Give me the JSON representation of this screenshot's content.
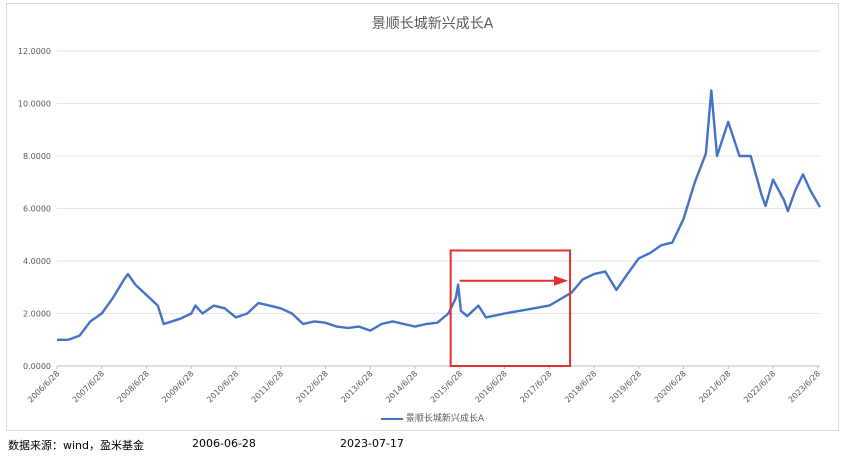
{
  "chart_data": {
    "type": "line",
    "title": "景顺长城新兴成长A",
    "ylim": [
      0,
      12
    ],
    "yticks": [
      "0.0000",
      "2.0000",
      "4.0000",
      "6.0000",
      "8.0000",
      "10.0000",
      "12.0000"
    ],
    "xticks": [
      "2006/6/28",
      "2007/6/28",
      "2008/6/28",
      "2009/6/28",
      "2010/6/28",
      "2011/6/28",
      "2012/6/28",
      "2013/6/28",
      "2014/6/28",
      "2015/6/28",
      "2016/6/28",
      "2017/6/28",
      "2018/6/28",
      "2019/6/28",
      "2020/6/28",
      "2021/6/28",
      "2022/6/28",
      "2023/6/28"
    ],
    "grid": true,
    "legend_position": "bottom",
    "series": [
      {
        "name": "景顺长城新兴成长A",
        "color": "#4472c4",
        "points": [
          [
            "2006-06-28",
            1.0
          ],
          [
            "2006-09-28",
            1.0
          ],
          [
            "2006-12-28",
            1.15
          ],
          [
            "2007-03-28",
            1.7
          ],
          [
            "2007-06-28",
            2.0
          ],
          [
            "2007-09-28",
            2.6
          ],
          [
            "2007-12-28",
            3.3
          ],
          [
            "2008-01-28",
            3.5
          ],
          [
            "2008-03-28",
            3.1
          ],
          [
            "2008-06-28",
            2.7
          ],
          [
            "2008-09-28",
            2.3
          ],
          [
            "2008-11-15",
            1.6
          ],
          [
            "2009-03-28",
            1.8
          ],
          [
            "2009-06-28",
            2.0
          ],
          [
            "2009-08-01",
            2.3
          ],
          [
            "2009-09-28",
            2.0
          ],
          [
            "2009-12-28",
            2.3
          ],
          [
            "2010-03-28",
            2.2
          ],
          [
            "2010-06-28",
            1.85
          ],
          [
            "2010-09-28",
            2.0
          ],
          [
            "2010-12-28",
            2.4
          ],
          [
            "2011-03-28",
            2.3
          ],
          [
            "2011-06-28",
            2.2
          ],
          [
            "2011-09-28",
            2.0
          ],
          [
            "2011-12-28",
            1.6
          ],
          [
            "2012-03-28",
            1.7
          ],
          [
            "2012-06-28",
            1.65
          ],
          [
            "2012-09-28",
            1.5
          ],
          [
            "2012-12-28",
            1.45
          ],
          [
            "2013-03-28",
            1.5
          ],
          [
            "2013-06-28",
            1.35
          ],
          [
            "2013-09-28",
            1.6
          ],
          [
            "2013-12-28",
            1.7
          ],
          [
            "2014-03-28",
            1.6
          ],
          [
            "2014-06-28",
            1.5
          ],
          [
            "2014-09-28",
            1.6
          ],
          [
            "2014-12-28",
            1.65
          ],
          [
            "2015-03-28",
            2.0
          ],
          [
            "2015-05-28",
            2.6
          ],
          [
            "2015-06-15",
            3.1
          ],
          [
            "2015-07-08",
            2.1
          ],
          [
            "2015-08-28",
            1.9
          ],
          [
            "2015-11-28",
            2.3
          ],
          [
            "2016-01-28",
            1.85
          ],
          [
            "2016-06-28",
            2.0
          ],
          [
            "2016-12-28",
            2.15
          ],
          [
            "2017-06-28",
            2.3
          ],
          [
            "2017-12-28",
            2.8
          ],
          [
            "2018-03-28",
            3.3
          ],
          [
            "2018-06-28",
            3.5
          ],
          [
            "2018-09-28",
            3.6
          ],
          [
            "2018-12-28",
            2.9
          ],
          [
            "2019-03-28",
            3.5
          ],
          [
            "2019-06-28",
            4.1
          ],
          [
            "2019-09-28",
            4.3
          ],
          [
            "2019-12-28",
            4.6
          ],
          [
            "2020-03-28",
            4.7
          ],
          [
            "2020-06-28",
            5.6
          ],
          [
            "2020-09-28",
            7.0
          ],
          [
            "2020-12-28",
            8.1
          ],
          [
            "2021-02-10",
            10.5
          ],
          [
            "2021-03-28",
            8.0
          ],
          [
            "2021-06-28",
            9.3
          ],
          [
            "2021-09-28",
            8.0
          ],
          [
            "2021-12-28",
            8.0
          ],
          [
            "2022-03-28",
            6.5
          ],
          [
            "2022-04-28",
            6.1
          ],
          [
            "2022-06-28",
            7.1
          ],
          [
            "2022-09-28",
            6.3
          ],
          [
            "2022-10-28",
            5.9
          ],
          [
            "2022-12-28",
            6.7
          ],
          [
            "2023-02-28",
            7.3
          ],
          [
            "2023-04-28",
            6.7
          ],
          [
            "2023-06-28",
            6.2
          ],
          [
            "2023-07-17",
            6.05
          ]
        ]
      }
    ],
    "annotations": [
      {
        "type": "box",
        "x0": "2015-04-15",
        "x1": "2017-12-15",
        "y0": 0.0,
        "y1": 4.4,
        "color": "#e03030"
      },
      {
        "type": "arrow",
        "from": [
          "2015-06-28",
          3.25
        ],
        "to": [
          "2017-11-28",
          3.25
        ],
        "color": "#e03030"
      }
    ]
  },
  "footer": {
    "source": "数据来源：wind，盈米基金",
    "start_date": "2006-06-28",
    "end_date": "2023-07-17"
  }
}
